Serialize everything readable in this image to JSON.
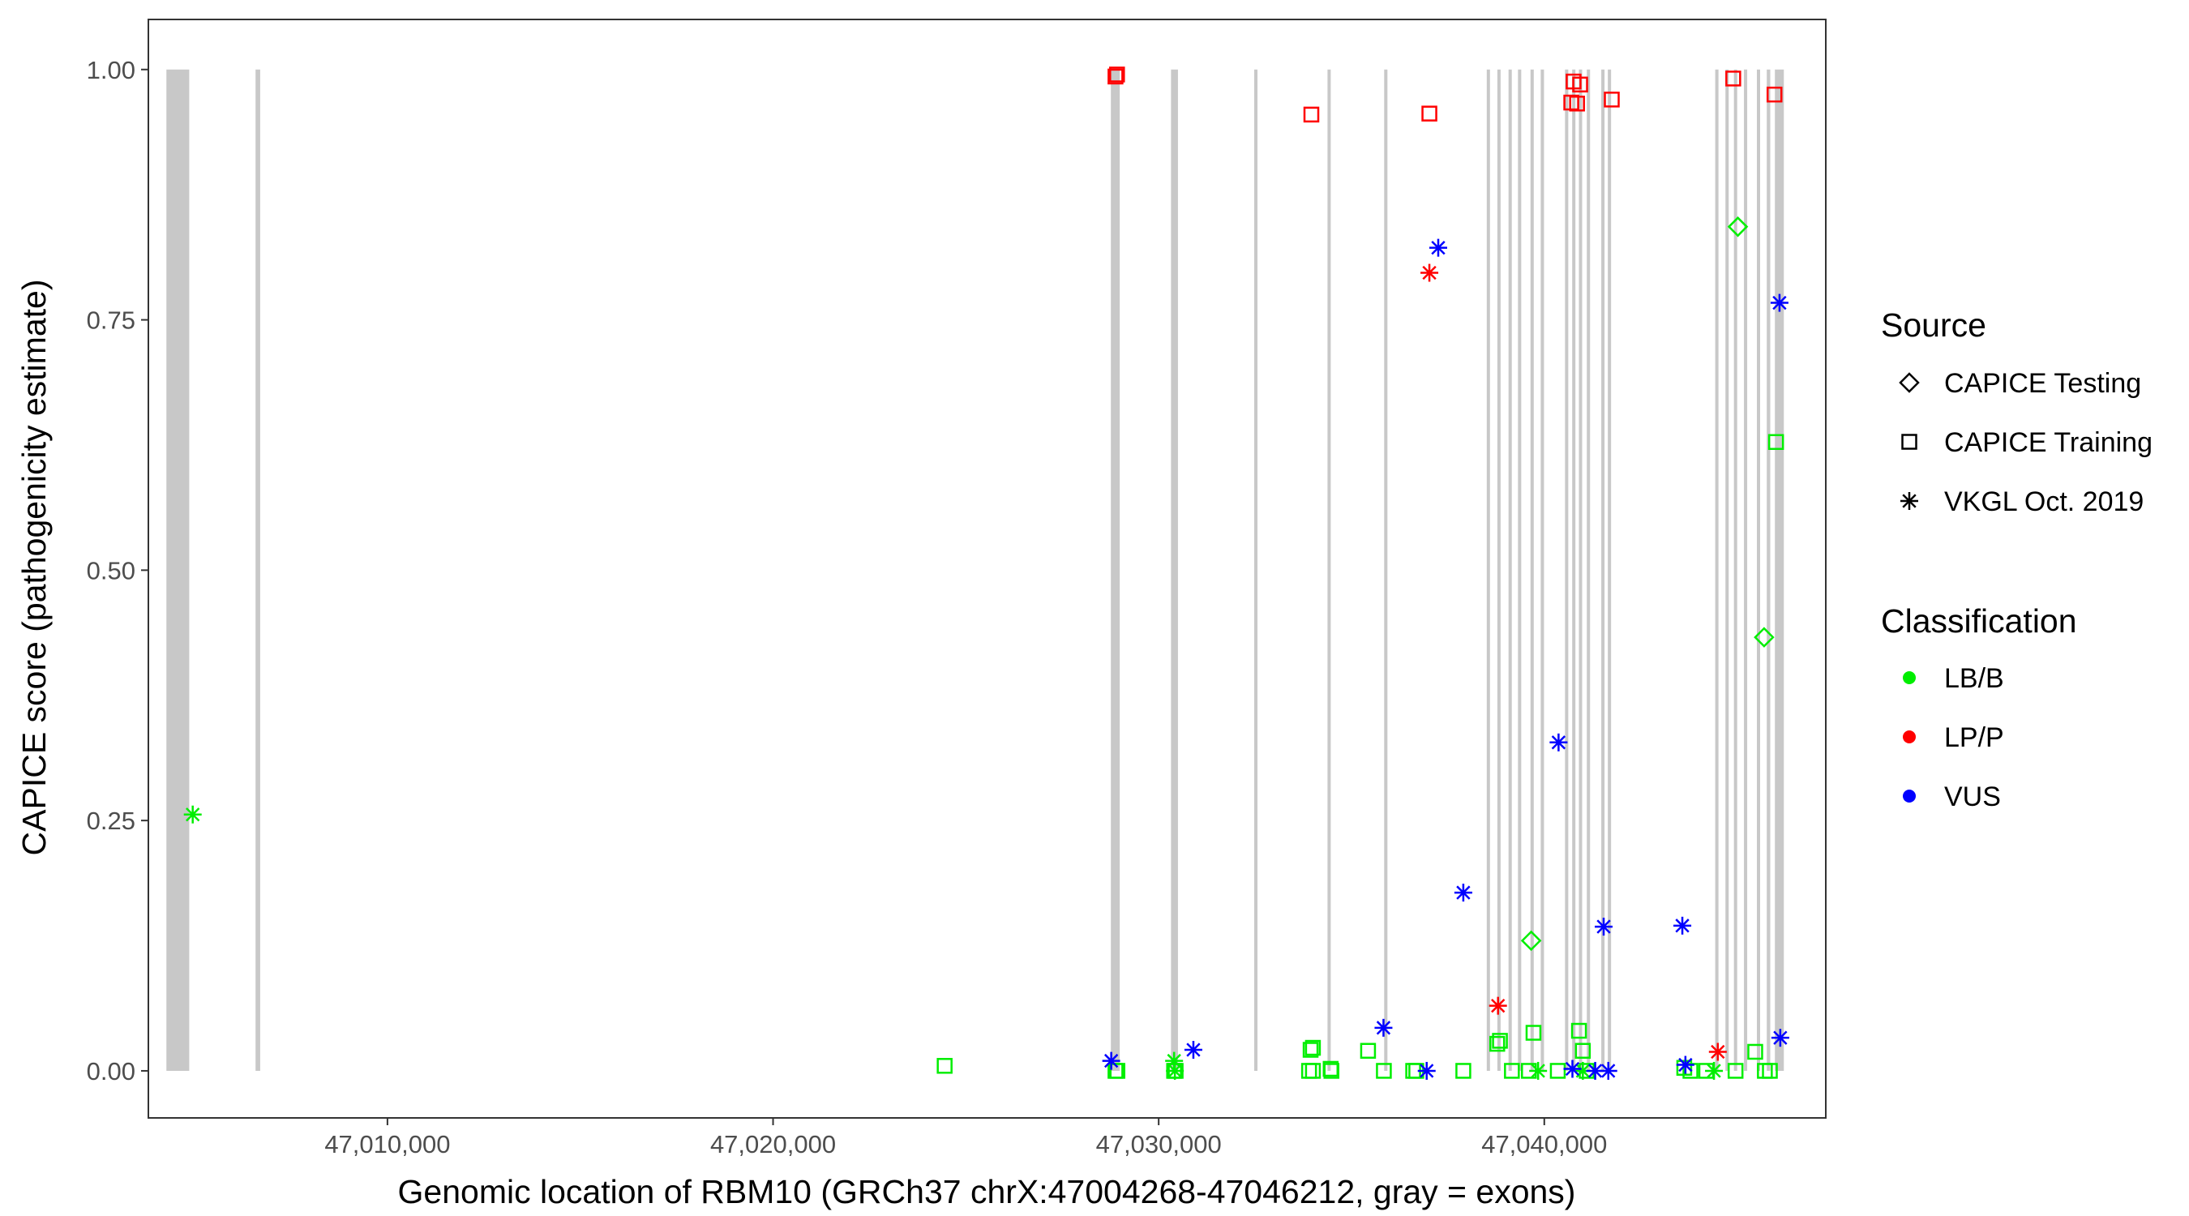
{
  "chart_data": {
    "type": "scatter",
    "xlabel": "Genomic location of RBM10 (GRCh37 chrX:47004268-47046212, gray = exons)",
    "ylabel": "CAPICE score (pathogenicity estimate)",
    "xlim": [
      47003800,
      47047300
    ],
    "ylim": [
      -0.047,
      1.05
    ],
    "x_ticks": [
      47010000,
      47020000,
      47030000,
      47040000
    ],
    "x_tick_labels": [
      "47,010,000",
      "47,020,000",
      "47,030,000",
      "47,040,000"
    ],
    "y_ticks": [
      0,
      0.25,
      0.5,
      0.75,
      1.0
    ],
    "y_tick_labels": [
      "0.00",
      "0.25",
      "0.50",
      "0.75",
      "1.00"
    ],
    "grid": false,
    "exons": [
      [
        47004268,
        47004860
      ],
      [
        47006580,
        47006700
      ],
      [
        47028760,
        47028990
      ],
      [
        47030320,
        47030500
      ],
      [
        47032480,
        47032560
      ],
      [
        47034380,
        47034460
      ],
      [
        47035850,
        47035930
      ],
      [
        47038520,
        47038580
      ],
      [
        47038790,
        47038860
      ],
      [
        47039080,
        47039150
      ],
      [
        47039320,
        47039400
      ],
      [
        47039650,
        47039720
      ],
      [
        47039910,
        47039990
      ],
      [
        47040550,
        47040610
      ],
      [
        47040730,
        47040800
      ],
      [
        47040900,
        47040980
      ],
      [
        47041110,
        47041180
      ],
      [
        47041480,
        47041560
      ],
      [
        47041650,
        47041730
      ],
      [
        47044440,
        47044510
      ],
      [
        47044700,
        47044780
      ],
      [
        47044920,
        47045000
      ],
      [
        47045180,
        47045260
      ],
      [
        47045520,
        47045590
      ],
      [
        47045770,
        47045860
      ],
      [
        47045980,
        47046212
      ]
    ],
    "exon_color": "#c8c8c8",
    "legend": {
      "source_title": "Source",
      "source_items": [
        {
          "label": "CAPICE Testing",
          "shape": "diamond"
        },
        {
          "label": "CAPICE Training",
          "shape": "square"
        },
        {
          "label": "VKGL Oct. 2019",
          "shape": "asterisk"
        }
      ],
      "class_title": "Classification",
      "class_items": [
        {
          "label": "LB/B",
          "color": "#00ee00"
        },
        {
          "label": "LP/P",
          "color": "#ff0000"
        },
        {
          "label": "VUS",
          "color": "#0000ff"
        }
      ],
      "placement": "right"
    },
    "series": [
      {
        "name": "CAPICE Testing",
        "color": "#00ee00",
        "shape": "diamond",
        "points": [
          [
            47045020,
            0.843
          ],
          [
            47045700,
            0.433
          ],
          [
            47039660,
            0.13
          ]
        ]
      },
      {
        "name": "CAPICE Training",
        "color": "#00ee00",
        "shape": "square",
        "points": [
          [
            47046010,
            0.628
          ],
          [
            47024450,
            0.005
          ],
          [
            47028880,
            0.0
          ],
          [
            47028930,
            0.0
          ],
          [
            47030400,
            0.0
          ],
          [
            47030440,
            0.0
          ],
          [
            47033940,
            0.021
          ],
          [
            47034000,
            0.023
          ],
          [
            47033900,
            0.0
          ],
          [
            47034000,
            0.0
          ],
          [
            47034460,
            0.002
          ],
          [
            47034480,
            0.0
          ],
          [
            47035430,
            0.02
          ],
          [
            47035840,
            0.0
          ],
          [
            47036600,
            0.0
          ],
          [
            47036680,
            0.0
          ],
          [
            47037900,
            0.0
          ],
          [
            47038780,
            0.027
          ],
          [
            47038850,
            0.03
          ],
          [
            47039160,
            0.0
          ],
          [
            47039600,
            0.0
          ],
          [
            47039720,
            0.038
          ],
          [
            47040350,
            0.0
          ],
          [
            47040900,
            0.04
          ],
          [
            47041000,
            0.02
          ],
          [
            47041100,
            0.0
          ],
          [
            47043630,
            0.003
          ],
          [
            47043790,
            0.0
          ],
          [
            47044200,
            0.0
          ],
          [
            47044960,
            0.0
          ],
          [
            47045470,
            0.019
          ],
          [
            47045850,
            0.0
          ],
          [
            47045720,
            0.0
          ]
        ]
      },
      {
        "name": "CAPICE Training",
        "color": "#ff0000",
        "shape": "square",
        "points": [
          [
            47028880,
            0.993
          ],
          [
            47028920,
            0.995
          ],
          [
            47033960,
            0.955
          ],
          [
            47037020,
            0.956
          ],
          [
            47040700,
            0.967
          ],
          [
            47040850,
            0.966
          ],
          [
            47040760,
            0.988
          ],
          [
            47040930,
            0.985
          ],
          [
            47041750,
            0.97
          ],
          [
            47044900,
            0.991
          ],
          [
            47045970,
            0.975
          ]
        ]
      },
      {
        "name": "VKGL Oct. 2019",
        "color": "#00ee00",
        "shape": "asterisk",
        "points": [
          [
            47004950,
            0.256
          ],
          [
            47030400,
            0.01
          ],
          [
            47030420,
            0.0
          ],
          [
            47039840,
            0.0
          ],
          [
            47041000,
            0.0
          ],
          [
            47044400,
            0.0
          ]
        ]
      },
      {
        "name": "VKGL Oct. 2019",
        "color": "#ff0000",
        "shape": "asterisk",
        "points": [
          [
            47037020,
            0.797
          ],
          [
            47038800,
            0.065
          ],
          [
            47044500,
            0.019
          ]
        ]
      },
      {
        "name": "VKGL Oct. 2019",
        "color": "#0000ff",
        "shape": "asterisk",
        "points": [
          [
            47037250,
            0.822
          ],
          [
            47046100,
            0.767
          ],
          [
            47040370,
            0.328
          ],
          [
            47037900,
            0.178
          ],
          [
            47041540,
            0.144
          ],
          [
            47043580,
            0.145
          ],
          [
            47035830,
            0.043
          ],
          [
            47030900,
            0.021
          ],
          [
            47028770,
            0.01
          ],
          [
            47036950,
            0.0
          ],
          [
            47040730,
            0.002
          ],
          [
            47041320,
            0.0
          ],
          [
            47041660,
            0.0
          ],
          [
            47043660,
            0.006
          ],
          [
            47046120,
            0.033
          ]
        ]
      }
    ]
  }
}
